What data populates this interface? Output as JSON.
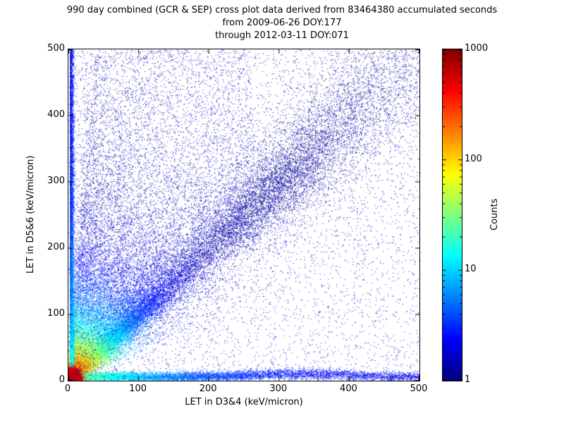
{
  "header": {
    "title_line1": "990 day combined (GCR & SEP) cross plot data derived from 83464380 accumulated seconds",
    "title_line2": "from 2009-06-26 DOY:177",
    "title_line3": "through 2012-03-11 DOY:071"
  },
  "chart_data": {
    "type": "heatmap",
    "representation": "procedural-density-scatter",
    "title": "990 day combined (GCR & SEP) cross plot data derived from 83464380 accumulated seconds",
    "subtitle_from": "from 2009-06-26 DOY:177",
    "subtitle_through": "through 2012-03-11 DOY:071",
    "accumulated_seconds": 83464380,
    "xlabel": "LET in D3&4 (keV/micron)",
    "ylabel": "LET in D5&6 (keV/micron)",
    "xlim": [
      0,
      500
    ],
    "ylim": [
      0,
      500
    ],
    "x_ticks": [
      0,
      100,
      200,
      300,
      400,
      500
    ],
    "y_ticks": [
      0,
      100,
      200,
      300,
      400,
      500
    ],
    "grid": false,
    "colorbar": {
      "label": "Counts",
      "scale": "log",
      "min": 1,
      "max": 1000,
      "ticks": [
        1,
        10,
        100,
        1000
      ],
      "colormap": "jet",
      "position": "right"
    },
    "seed": 42,
    "features": [
      {
        "kind": "ray",
        "slope": 1.0,
        "n": 22000,
        "mean_r": 90,
        "tail_frac": 0.28,
        "tail_max": 707,
        "blob_frac": 0.16,
        "blob_r": 410,
        "blob_sigma": 85,
        "spread0": 1.2,
        "spread_k": 0.055
      },
      {
        "kind": "ray",
        "slope": 1.3,
        "n": 3200,
        "mean_r": 110,
        "spread0": 1.5,
        "spread_k": 0.04
      },
      {
        "kind": "ray",
        "slope": 1.6,
        "n": 3000,
        "mean_r": 115,
        "spread0": 1.5,
        "spread_k": 0.04
      },
      {
        "kind": "ray",
        "slope": 2.1,
        "n": 2600,
        "mean_r": 120,
        "spread0": 1.5,
        "spread_k": 0.035
      },
      {
        "kind": "ray",
        "slope": 2.8,
        "n": 2200,
        "mean_r": 130,
        "spread0": 1.5,
        "spread_k": 0.03
      },
      {
        "kind": "ray",
        "slope": 3.8,
        "n": 1800,
        "mean_r": 150,
        "spread0": 1.5,
        "spread_k": 0.025
      },
      {
        "kind": "ray",
        "slope": 5.2,
        "n": 1500,
        "mean_r": 180,
        "spread0": 1.5,
        "spread_k": 0.02
      },
      {
        "kind": "ray",
        "slope": 7.0,
        "n": 1300,
        "mean_r": 210,
        "spread0": 1.5,
        "spread_k": 0.018
      },
      {
        "kind": "ray",
        "slope": 9.5,
        "n": 1100,
        "mean_r": 240,
        "spread0": 1.5,
        "spread_k": 0.015
      },
      {
        "kind": "ray",
        "slope": 13.0,
        "n": 1000,
        "mean_r": 260,
        "spread0": 1.5,
        "spread_k": 0.012
      },
      {
        "kind": "ray",
        "slope": 0.75,
        "n": 1600,
        "mean_r": 80,
        "spread0": 1.2,
        "spread_k": 0.04
      },
      {
        "kind": "ray",
        "slope": 0.55,
        "n": 1000,
        "mean_r": 60,
        "spread0": 1.2,
        "spread_k": 0.05
      },
      {
        "kind": "hband",
        "n": 9000,
        "y0": 6,
        "sigma": 3.5,
        "mean_x": 130,
        "uniform_frac": 0.45,
        "bump_x": 330,
        "bump_h": 9,
        "bump_w": 70
      },
      {
        "kind": "vband",
        "n": 8000,
        "x0": 2,
        "sigma": 2.6,
        "mean_y": 160,
        "uniform_frac": 0.5
      },
      {
        "kind": "hotspot",
        "n": 9000,
        "sigma": 7
      },
      {
        "kind": "uniform",
        "n": 5500,
        "x": [
          0,
          500
        ],
        "y": [
          0,
          500
        ]
      },
      {
        "kind": "triangle",
        "n": 2600,
        "xmax": 260
      },
      {
        "kind": "diffuse_diag",
        "n": 3000,
        "sigma": 55
      }
    ]
  }
}
